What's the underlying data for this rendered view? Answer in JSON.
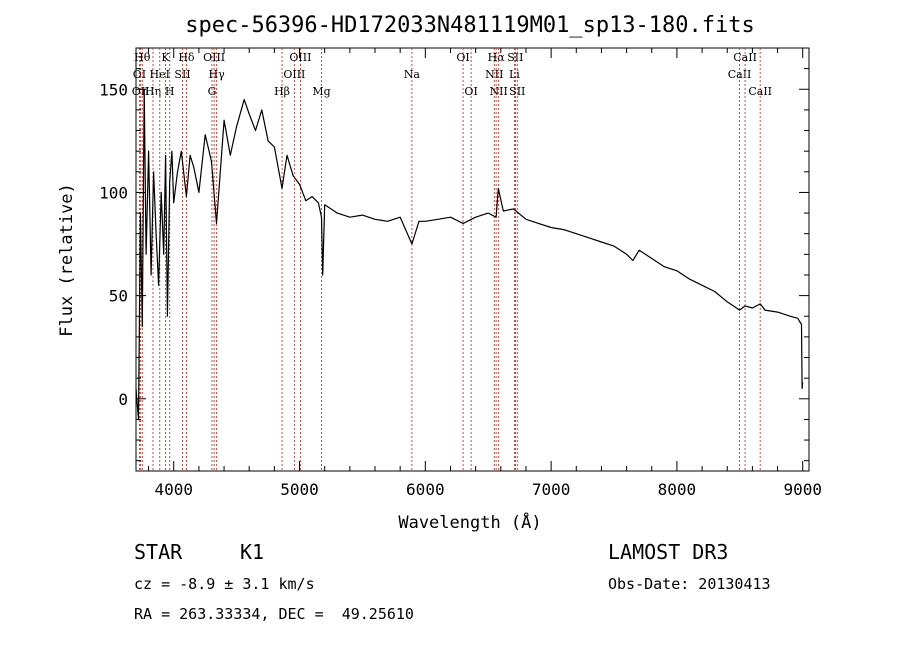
{
  "chart_data": {
    "type": "line",
    "title": "spec-56396-HD172033N481119M01_sp13-180.fits",
    "xlabel": "Wavelength (Å)",
    "ylabel": "Flux (relative)",
    "xlim": [
      3700,
      9050
    ],
    "ylim": [
      -35,
      170
    ],
    "x_ticks": [
      4000,
      5000,
      6000,
      7000,
      8000,
      9000
    ],
    "y_ticks": [
      0,
      50,
      100,
      150
    ],
    "series": [
      {
        "name": "spectrum",
        "x": [
          3700,
          3720,
          3735,
          3750,
          3765,
          3780,
          3800,
          3820,
          3840,
          3860,
          3880,
          3900,
          3920,
          3935,
          3950,
          3968,
          3985,
          4000,
          4030,
          4060,
          4101,
          4130,
          4160,
          4200,
          4250,
          4300,
          4340,
          4400,
          4450,
          4500,
          4560,
          4600,
          4650,
          4700,
          4750,
          4800,
          4861,
          4900,
          4950,
          5000,
          5050,
          5100,
          5150,
          5175,
          5184,
          5200,
          5250,
          5300,
          5400,
          5500,
          5600,
          5700,
          5800,
          5893,
          5950,
          6000,
          6100,
          6200,
          6300,
          6400,
          6500,
          6563,
          6580,
          6620,
          6700,
          6800,
          6900,
          7000,
          7100,
          7200,
          7300,
          7400,
          7500,
          7600,
          7650,
          7700,
          7800,
          7900,
          8000,
          8100,
          8200,
          8300,
          8400,
          8498,
          8542,
          8600,
          8662,
          8700,
          8800,
          8900,
          8960,
          8990,
          8995,
          9000
        ],
        "values": [
          5,
          -10,
          90,
          35,
          150,
          70,
          120,
          60,
          110,
          80,
          55,
          100,
          70,
          118,
          40,
          105,
          120,
          95,
          110,
          120,
          98,
          118,
          112,
          100,
          128,
          115,
          85,
          135,
          118,
          132,
          145,
          138,
          130,
          140,
          125,
          122,
          102,
          118,
          108,
          104,
          96,
          98,
          95,
          88,
          60,
          94,
          92,
          90,
          88,
          89,
          87,
          86,
          88,
          75,
          86,
          86,
          87,
          88,
          85,
          88,
          90,
          88,
          102,
          91,
          92,
          87,
          85,
          83,
          82,
          80,
          78,
          76,
          74,
          70,
          67,
          72,
          68,
          64,
          62,
          58,
          55,
          52,
          47,
          43,
          45,
          44,
          46,
          43,
          42,
          40,
          39,
          36,
          5,
          8
        ]
      }
    ],
    "lines": [
      {
        "label": "OI",
        "x": 3727,
        "row": 1
      },
      {
        "label": "OII",
        "x": 3737,
        "row": 2
      },
      {
        "label": "Hθ",
        "x": 3750,
        "row": 0
      },
      {
        "label": "Hη",
        "x": 3835,
        "row": 2
      },
      {
        "label": "HeI",
        "x": 3889,
        "row": 1
      },
      {
        "label": "K",
        "x": 3934,
        "row": 0
      },
      {
        "label": "H",
        "x": 3968,
        "row": 2
      },
      {
        "label": "SII",
        "x": 4070,
        "row": 1
      },
      {
        "label": "Hδ",
        "x": 4101,
        "row": 0
      },
      {
        "label": "G",
        "x": 4304,
        "row": 2
      },
      {
        "label": "OIII",
        "x": 4321,
        "row": 0
      },
      {
        "label": "Hγ",
        "x": 4341,
        "row": 1
      },
      {
        "label": "Hβ",
        "x": 4861,
        "row": 2
      },
      {
        "label": "OIII",
        "x": 4959,
        "row": 1
      },
      {
        "label": "OIII",
        "x": 5007,
        "row": 0
      },
      {
        "label": "Mg",
        "x": 5175,
        "row": 2
      },
      {
        "label": "Na",
        "x": 5893,
        "row": 1
      },
      {
        "label": "OI",
        "x": 6300,
        "row": 0
      },
      {
        "label": "OI",
        "x": 6364,
        "row": 2
      },
      {
        "label": "NII",
        "x": 6548,
        "row": 1
      },
      {
        "label": "Hα",
        "x": 6563,
        "row": 0
      },
      {
        "label": "NII",
        "x": 6583,
        "row": 2
      },
      {
        "label": "Li",
        "x": 6708,
        "row": 1
      },
      {
        "label": "SII",
        "x": 6716,
        "row": 0
      },
      {
        "label": "SII",
        "x": 6731,
        "row": 2
      },
      {
        "label": "CaII",
        "x": 8498,
        "row": 1
      },
      {
        "label": "CaII",
        "x": 8542,
        "row": 0
      },
      {
        "label": "CaII",
        "x": 8662,
        "row": 2
      }
    ]
  },
  "info": {
    "object_class": "STAR",
    "subclass": "K1",
    "survey": "LAMOST DR3",
    "cz": "cz = -8.9 ± 3.1 km/s",
    "obs_date": "Obs-Date: 20130413",
    "coords": "RA = 263.33334, DEC =  49.25610"
  }
}
